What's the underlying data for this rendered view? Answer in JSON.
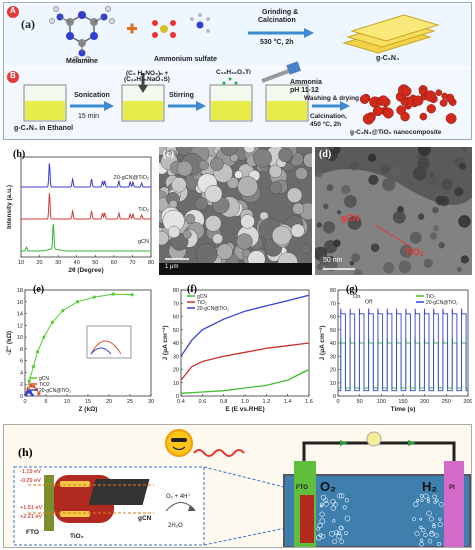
{
  "scheme": {
    "row_a_tag": "A",
    "row_b_tag": "B",
    "panel_label": "(a)",
    "melamine": "Melamine",
    "ammonium_sulfate": "Ammonium sulfate",
    "step1_top": "Grinding &",
    "step1_mid": "Calcination",
    "step1_bot": "530 °C, 2h",
    "product1": "g-C₃N₄",
    "beaker1_label": "g-C₃N₄ in Ethanol",
    "sonication": "Sonication",
    "sonication_time": "15 min",
    "reagent_top": "(C₂ H₅NO₃)ₙ +",
    "reagent_bot": "(C₁₂H₂₅NaO₄S)",
    "stirring": "Stirring",
    "ti_precursor": "C₁₆H₃₆O₄Ti",
    "ammonia": "Ammonia",
    "ph": "pH 11-12",
    "wash_top": "Washing & drying",
    "wash_mid": "Calcination,",
    "wash_bot": "450 °C, 2h",
    "product2": "g-C₃N₄@TiO₂ nanocomposite"
  },
  "panels": {
    "b": "(b)",
    "c": "(c)",
    "d": "(d)",
    "e": "(e)",
    "f": "(f)",
    "g": "(g)",
    "h": "(h)"
  },
  "tem": {
    "gcn": "gCN",
    "tio2": "TiO₂",
    "scale": "50 nm"
  },
  "sem": {
    "scale": "1 μm"
  },
  "diagram_h": {
    "cb1": "-1.19 eV",
    "cb2": "-0.29 eV",
    "vb1": "+1.51 eV",
    "vb2": "+2.21 eV",
    "fto": "FTO",
    "tio2": "TiO₂",
    "gcn": "gCN",
    "o2": "O₂ + 4H⁺",
    "h2o": "2H₂O",
    "o2_big": "O₂",
    "h2_big": "H₂",
    "fto_electrode": "FTO",
    "pt_electrode": "Pt"
  },
  "chart_data": [
    {
      "type": "line",
      "panel": "b",
      "xlabel": "2θ (Degree)",
      "ylabel": "Intensity (a.u.)",
      "xlim": [
        10,
        80
      ],
      "xticks": [
        "10",
        "20",
        "30",
        "40",
        "50",
        "60",
        "70",
        "80"
      ],
      "series": [
        {
          "name": "20-gCN@TiO₂",
          "color": "#3b3bd6",
          "peaks": [
            25.3,
            37.8,
            48.0,
            53.9,
            55.1,
            62.7,
            68.8,
            70.3,
            75.0
          ]
        },
        {
          "name": "TiO₂",
          "color": "#d43a3a",
          "peaks": [
            25.3,
            37.8,
            48.0,
            53.9,
            55.1,
            62.7,
            68.8,
            70.3,
            75.0
          ]
        },
        {
          "name": "gCN",
          "color": "#39b63a",
          "peaks": [
            13.0,
            27.4
          ]
        }
      ]
    },
    {
      "type": "scatter",
      "panel": "e",
      "xlabel": "Z (kΩ)",
      "ylabel": "-Z\" (kΩ)",
      "xlim": [
        0,
        30
      ],
      "ylim": [
        0,
        18
      ],
      "xticks": [
        "0",
        "5",
        "10",
        "15",
        "20",
        "25",
        "30"
      ],
      "yticks": [
        "0",
        "2",
        "4",
        "6",
        "8",
        "10",
        "12",
        "14",
        "16",
        "18"
      ],
      "legend": "bottom-left",
      "series": [
        {
          "name": "gCN",
          "color": "#55cc33",
          "x": [
            0.3,
            1.0,
            2.0,
            3.0,
            4.5,
            6.5,
            9.0,
            12.5,
            16.5,
            21.0,
            25.5
          ],
          "y": [
            0.5,
            2.5,
            5.0,
            7.5,
            10.0,
            12.5,
            14.5,
            16.0,
            16.8,
            17.3,
            17.2
          ]
        },
        {
          "name": "TiO2",
          "color": "#dd5533",
          "x": [
            0.2,
            0.7,
            1.4,
            2.1,
            2.8,
            3.3
          ],
          "y": [
            0.3,
            1.2,
            1.7,
            1.6,
            1.1,
            0.4
          ]
        },
        {
          "name": "20-gCN@TiO₂",
          "color": "#3344cc",
          "x": [
            0.2,
            0.5,
            0.9,
            1.3,
            1.7
          ],
          "y": [
            0.2,
            0.6,
            0.8,
            0.6,
            0.2
          ]
        }
      ]
    },
    {
      "type": "line",
      "panel": "f",
      "xlabel": "E (E vs.RHE)",
      "ylabel": "J (μA cm⁻²)",
      "xlim": [
        0.4,
        1.6
      ],
      "ylim": [
        0,
        80
      ],
      "xticks": [
        "0.4",
        "0.6",
        "0.8",
        "1.0",
        "1.2",
        "1.4",
        "1.6"
      ],
      "yticks": [
        "0",
        "10",
        "20",
        "30",
        "40",
        "50",
        "60",
        "70",
        "80"
      ],
      "legend": "top-left",
      "series": [
        {
          "name": "gCN",
          "color": "#44bb33",
          "x": [
            0.4,
            0.6,
            0.8,
            1.0,
            1.2,
            1.4,
            1.6
          ],
          "y": [
            2,
            3,
            4,
            6,
            8,
            12,
            20
          ]
        },
        {
          "name": "TiO₂",
          "color": "#cc3333",
          "x": [
            0.4,
            0.5,
            0.6,
            0.8,
            1.0,
            1.2,
            1.4,
            1.6
          ],
          "y": [
            12,
            22,
            26,
            30,
            33,
            36,
            38,
            40
          ]
        },
        {
          "name": "20-gCN@TiO₂",
          "color": "#3344cc",
          "x": [
            0.4,
            0.5,
            0.6,
            0.8,
            1.0,
            1.2,
            1.4,
            1.6
          ],
          "y": [
            30,
            42,
            50,
            58,
            64,
            68,
            72,
            76
          ]
        }
      ]
    },
    {
      "type": "line",
      "panel": "g",
      "xlabel": "Time (s)",
      "ylabel": "J (μA cm⁻²)",
      "xlim": [
        0,
        300
      ],
      "ylim": [
        0,
        80
      ],
      "xticks": [
        "0",
        "50",
        "100",
        "150",
        "200",
        "250",
        "300"
      ],
      "yticks": [
        "0",
        "10",
        "20",
        "30",
        "40",
        "50",
        "60",
        "70",
        "80"
      ],
      "legend": "top-right",
      "annotations": [
        "On",
        "Off"
      ],
      "series": [
        {
          "name": "TiO₂",
          "color": "#44bb33",
          "on_level": 40,
          "off_level": 6
        },
        {
          "name": "20-gCN@TiO₂",
          "color": "#3344cc",
          "on_level": 62,
          "off_level": 4
        }
      ],
      "cycles": 14
    }
  ]
}
